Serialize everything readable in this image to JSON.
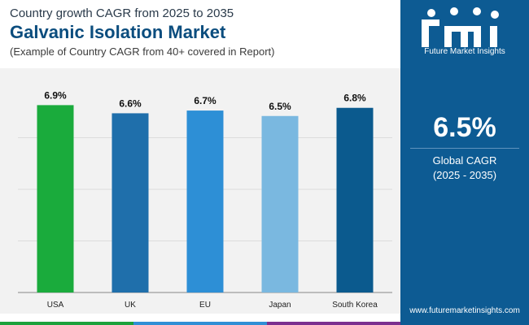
{
  "header": {
    "subtitle_top": "Country growth CAGR from 2025 to 2035",
    "title": "Galvanic Isolation Market",
    "subtitle": "(Example of Country CAGR from 40+ covered in Report)"
  },
  "sidebar": {
    "logo_text": "Future Market Insights",
    "stat_value": "6.5%",
    "stat_label_line1": "Global CAGR",
    "stat_label_line2": "(2025 - 2035)",
    "website": "www.futuremarketinsights.com",
    "background_color": "#0d5b93"
  },
  "footer_colors": [
    "#1ba13b",
    "#2f8fd6",
    "#7b2f8f"
  ],
  "chart_data": {
    "type": "bar",
    "categories": [
      "USA",
      "UK",
      "EU",
      "Japan",
      "South Korea"
    ],
    "values": [
      6.9,
      6.6,
      6.7,
      6.5,
      6.8
    ],
    "value_labels": [
      "6.9%",
      "6.6%",
      "6.7%",
      "6.5%",
      "6.8%"
    ],
    "colors": [
      "#1aab3c",
      "#1f6fab",
      "#2d8fd6",
      "#7ab8e0",
      "#0b5a8e"
    ],
    "title": "",
    "xlabel": "",
    "ylabel": "",
    "ylim": [
      0,
      7.6
    ],
    "grid": true,
    "legend": "none"
  }
}
